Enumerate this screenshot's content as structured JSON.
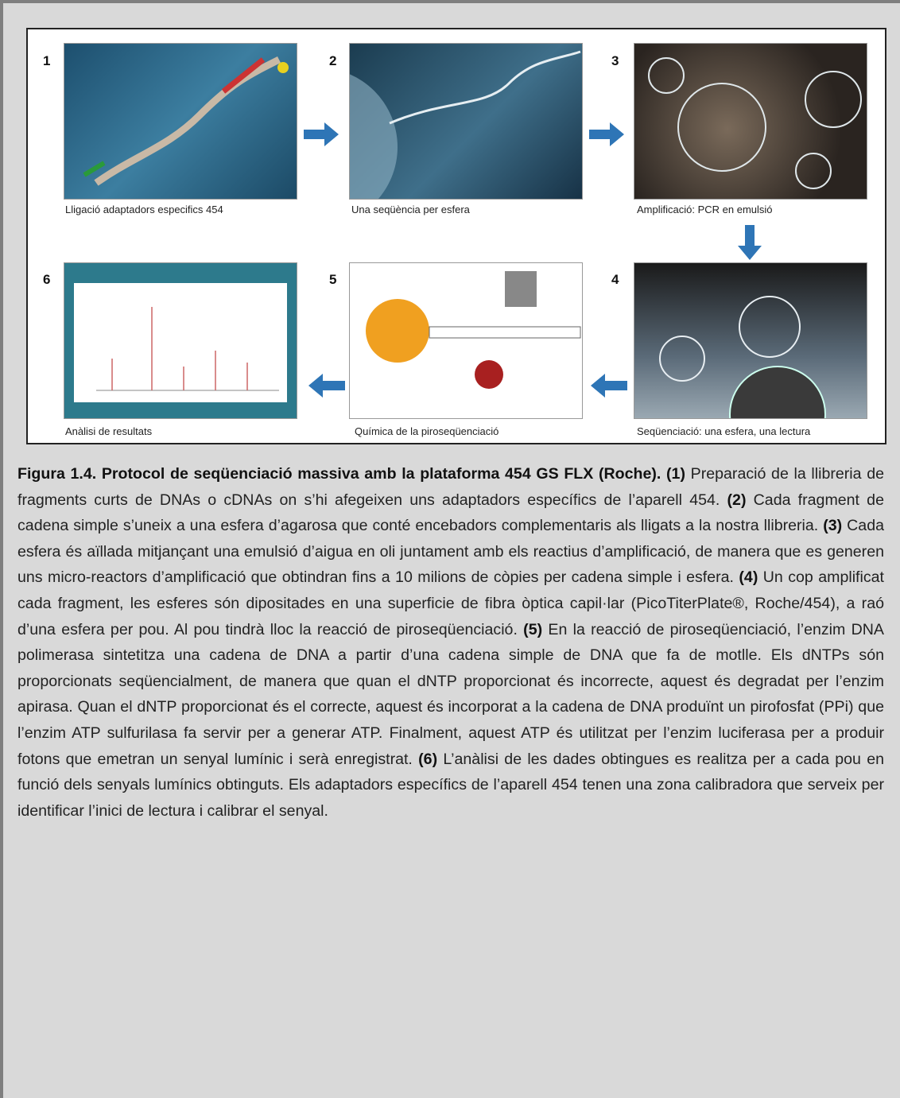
{
  "figure": {
    "panels": [
      {
        "number": "1",
        "label": "Lligació adaptadors especifics 454"
      },
      {
        "number": "2",
        "label": "Una seqüència per esfera"
      },
      {
        "number": "3",
        "label": "Amplificació: PCR en emulsió"
      },
      {
        "number": "4",
        "label": "Seqüenciació: una esfera, una lectura"
      },
      {
        "number": "5",
        "label": "Química de la piroseqüenciació"
      },
      {
        "number": "6",
        "label": "Anàlisi de resultats"
      }
    ]
  },
  "caption": {
    "title": "Figura 1.4. Protocol de seqüenciació massiva amb la plataforma 454 GS FLX (Roche).",
    "steps": [
      {
        "marker": "(1)",
        "text": "Preparació de la llibreria de fragments curts de DNAs o cDNAs on s’hi afegeixen uns adaptadors específics de l’aparell 454."
      },
      {
        "marker": "(2)",
        "text": "Cada fragment de cadena simple s’uneix a una esfera d’agarosa que conté encebadors complementaris als lligats a la nostra llibreria."
      },
      {
        "marker": "(3)",
        "text": "Cada esfera és aïllada mitjançant una emulsió d’aigua en oli juntament amb els reactius d’amplificació, de manera que es generen uns micro-reactors d’amplificació que obtindran fins a 10 milions de còpies per cadena simple i esfera."
      },
      {
        "marker": "(4)",
        "text": "Un cop amplificat cada fragment, les esferes són dipositades en una superficie de fibra òptica capil·lar (PicoTiterPlate®, Roche/454), a raó d’una esfera per pou. Al pou tindrà lloc la reacció de piroseqüenciació."
      },
      {
        "marker": "(5)",
        "text": "En la reacció de piroseqüenciació, l’enzim DNA polimerasa sintetitza una cadena de DNA a partir d’una cadena simple de DNA que fa de motlle. Els dNTPs són proporcionats seqüencialment, de manera que quan el dNTP proporcionat és incorrecte, aquest és degradat per l’enzim apirasa. Quan el dNTP proporcionat és el correcte, aquest és incorporat a la cadena de DNA produïnt un pirofosfat (PPi) que l’enzim ATP sulfurilasa fa servir per a generar ATP. Finalment, aquest ATP és utilitzat per l’enzim luciferasa per a produir fotons que emetran un senyal lumínic i serà enregistrat."
      },
      {
        "marker": "(6)",
        "text": "L’anàlisi de les dades obtingues es realitza per a cada pou en funció dels senyals lumínics obtinguts. Els adaptadors específics de l’aparell 454 tenen una zona calibradora que serveix per identificar l’inici de lectura i calibrar el senyal."
      }
    ]
  }
}
